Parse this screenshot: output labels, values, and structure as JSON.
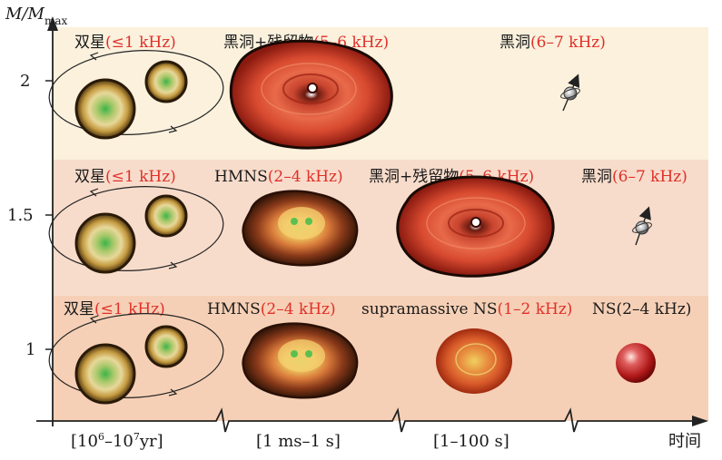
{
  "axes": {
    "y_title_main": "M/M",
    "y_title_sub": "max",
    "x_title": "时间",
    "y_ticks": [
      "2",
      "1.5",
      "1"
    ],
    "x_ticks": [
      {
        "pre": "[10",
        "sup1": "6",
        "mid": "–10",
        "sup2": "7",
        "post": "yr]"
      },
      {
        "text": "[1 ms–1 s]"
      },
      {
        "text": "[1–100 s]"
      }
    ]
  },
  "rows": [
    {
      "mass": "2",
      "labels": [
        {
          "black": "双星",
          "red": "(≤1 kHz)"
        },
        {
          "black": "黑洞+残留物",
          "red": "(5–6 kHz)"
        },
        {
          "black": "黑洞",
          "red": "(6–7 kHz)"
        }
      ]
    },
    {
      "mass": "1.5",
      "labels": [
        {
          "black": "双星",
          "red": "(≤1 kHz)"
        },
        {
          "black": "HMNS",
          "red": "(2–4 kHz)"
        },
        {
          "black": "黑洞+残留物",
          "red": "(5–6 kHz)"
        },
        {
          "black": "黑洞",
          "red": "(6–7 kHz)"
        }
      ]
    },
    {
      "mass": "1",
      "labels": [
        {
          "black": "双星",
          "red": "(≤1 kHz)"
        },
        {
          "black": "HMNS",
          "red": "(2–4 kHz)"
        },
        {
          "black": "supramassive NS",
          "red": "(1–2 kHz)"
        },
        {
          "black": "NS(2–4 kHz)",
          "red": ""
        }
      ]
    }
  ],
  "colors": {
    "row_top": "#fbf1dd",
    "row_mid": "#f8dccb",
    "row_bottom": "#f6d0b6",
    "red_text": "#e0302a"
  }
}
